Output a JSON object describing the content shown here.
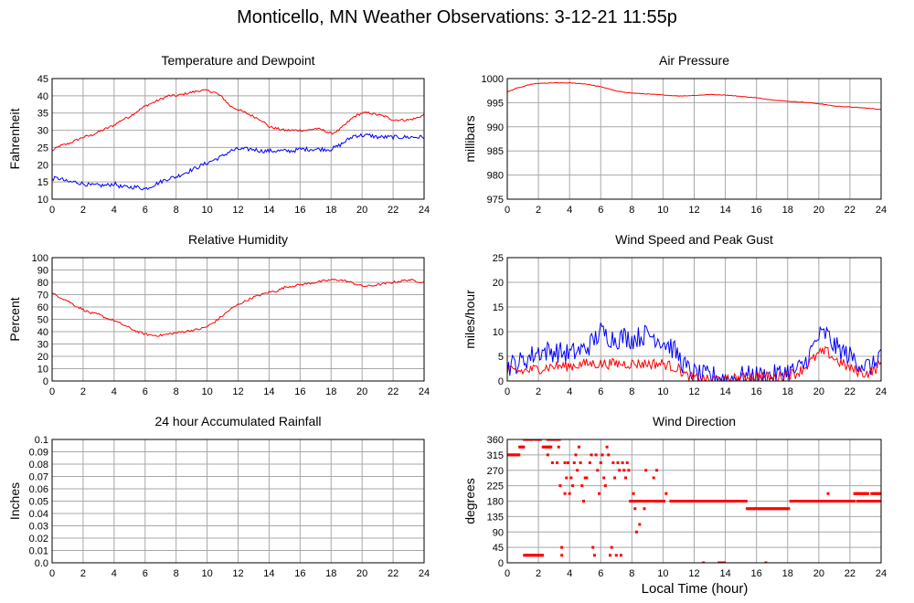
{
  "page": {
    "title": "Monticello, MN Weather Observations: 3-12-21 11:55p",
    "xlabel": "Local Time (hour)"
  },
  "colors": {
    "red": "#ff0000",
    "blue": "#0000ff",
    "grid": "#a8a8a8"
  },
  "chart_data": [
    {
      "id": "temp",
      "type": "line",
      "title": "Temperature and Dewpoint",
      "ylabel": "Fahrenheit",
      "xlim": [
        0,
        24
      ],
      "ylim": [
        10,
        45
      ],
      "yticks": [
        10,
        15,
        20,
        25,
        30,
        35,
        40,
        45
      ],
      "xticks": [
        0,
        2,
        4,
        6,
        8,
        10,
        12,
        14,
        16,
        18,
        20,
        22,
        24
      ],
      "grid": true,
      "series": [
        {
          "color": "red",
          "noise": 0.35,
          "x": [
            0,
            0.5,
            1,
            1.5,
            2,
            2.5,
            3,
            3.5,
            4,
            4.5,
            5,
            5.5,
            6,
            6.5,
            7,
            7.5,
            8,
            8.5,
            9,
            9.5,
            10,
            10.5,
            11,
            11.5,
            12,
            12.5,
            13,
            13.5,
            14,
            14.5,
            15,
            15.5,
            16,
            16.5,
            17,
            17.5,
            18,
            18.5,
            19,
            19.5,
            20,
            20.5,
            21,
            21.5,
            22,
            22.5,
            23,
            23.5,
            24
          ],
          "y": [
            24,
            25.5,
            26,
            27,
            28,
            28.5,
            29.5,
            30.5,
            31.5,
            33,
            34,
            35.5,
            37,
            38,
            39,
            40,
            40,
            40.5,
            41,
            41.5,
            41.5,
            41,
            39.5,
            37,
            36,
            35,
            34,
            33,
            31,
            30.5,
            30,
            30,
            30,
            30,
            30.5,
            30,
            29,
            30,
            32,
            34,
            35,
            35,
            34.5,
            34,
            33,
            33,
            33,
            33.5,
            34.5
          ]
        },
        {
          "color": "blue",
          "noise": 0.6,
          "x": [
            0,
            0.5,
            1,
            1.5,
            2,
            2.5,
            3,
            3.5,
            4,
            4.5,
            5,
            5.5,
            6,
            6.5,
            7,
            7.5,
            8,
            8.5,
            9,
            9.5,
            10,
            10.5,
            11,
            11.5,
            12,
            12.5,
            13,
            13.5,
            14,
            14.5,
            15,
            15.5,
            16,
            16.5,
            17,
            17.5,
            18,
            18.5,
            19,
            19.5,
            20,
            20.5,
            21,
            21.5,
            22,
            22.5,
            23,
            23.5,
            24
          ],
          "y": [
            16,
            16,
            15,
            15,
            14.5,
            14,
            14,
            14,
            14.5,
            13.5,
            13.5,
            13.5,
            13,
            14,
            15,
            16,
            16.5,
            17.5,
            18.5,
            19.5,
            20.5,
            21.5,
            22.5,
            24,
            24.5,
            24.5,
            24.5,
            24,
            24,
            24,
            24,
            24,
            24.5,
            24.5,
            24.5,
            24.5,
            24.5,
            25.5,
            27,
            28.5,
            28.5,
            28.5,
            28,
            28,
            28,
            28,
            28,
            28,
            28
          ]
        }
      ]
    },
    {
      "id": "pressure",
      "type": "line",
      "title": "Air Pressure",
      "ylabel": "millibars",
      "xlim": [
        0,
        24
      ],
      "ylim": [
        975,
        1000
      ],
      "yticks": [
        975,
        980,
        985,
        990,
        995,
        1000
      ],
      "xticks": [
        0,
        2,
        4,
        6,
        8,
        10,
        12,
        14,
        16,
        18,
        20,
        22,
        24
      ],
      "grid": true,
      "series": [
        {
          "color": "red",
          "noise": 0.06,
          "x": [
            0,
            0.5,
            1,
            1.5,
            2,
            3,
            4,
            5,
            6,
            6.5,
            7,
            8,
            9,
            10,
            11,
            12,
            13,
            14,
            15,
            16,
            17,
            18,
            19,
            20,
            21,
            22,
            23,
            24
          ],
          "y": [
            997.2,
            997.9,
            998.3,
            998.8,
            999.0,
            999.1,
            999.1,
            998.9,
            998.3,
            997.9,
            997.4,
            997.0,
            996.8,
            996.6,
            996.4,
            996.5,
            996.7,
            996.6,
            996.3,
            996.0,
            995.6,
            995.3,
            995.1,
            994.8,
            994.3,
            994.1,
            993.9,
            993.6
          ]
        }
      ]
    },
    {
      "id": "humidity",
      "type": "line",
      "title": "Relative Humidity",
      "ylabel": "Percent",
      "xlim": [
        0,
        24
      ],
      "ylim": [
        0,
        100
      ],
      "yticks": [
        0,
        10,
        20,
        30,
        40,
        50,
        60,
        70,
        80,
        90,
        100
      ],
      "xticks": [
        0,
        2,
        4,
        6,
        8,
        10,
        12,
        14,
        16,
        18,
        20,
        22,
        24
      ],
      "grid": true,
      "series": [
        {
          "color": "red",
          "noise": 0.9,
          "x": [
            0,
            0.5,
            1,
            1.5,
            2,
            2.5,
            3,
            3.5,
            4,
            4.5,
            5,
            5.5,
            6,
            6.5,
            7,
            7.5,
            8,
            8.5,
            9,
            9.5,
            10,
            10.5,
            11,
            11.5,
            12,
            12.5,
            13,
            13.5,
            14,
            14.5,
            15,
            15.5,
            16,
            16.5,
            17,
            17.5,
            18,
            18.5,
            19,
            19.5,
            20,
            20.5,
            21,
            21.5,
            22,
            22.5,
            23,
            23.5,
            24
          ],
          "y": [
            71,
            68,
            65,
            61,
            58,
            55,
            54,
            51,
            49,
            46,
            43,
            40,
            38,
            37,
            37,
            38,
            39,
            40,
            41,
            42,
            44,
            48,
            53,
            58,
            62,
            65,
            68,
            70,
            72,
            73,
            76,
            77,
            78,
            79,
            80,
            81,
            82,
            82,
            81,
            79,
            77,
            77,
            78,
            79,
            80,
            81,
            82,
            81,
            80
          ]
        }
      ]
    },
    {
      "id": "wind",
      "type": "line",
      "title": "Wind Speed and Peak Gust",
      "ylabel": "miles/hour",
      "xlim": [
        0,
        24
      ],
      "ylim": [
        0,
        25
      ],
      "yticks": [
        0,
        5,
        10,
        15,
        20,
        25
      ],
      "xticks": [
        0,
        2,
        4,
        6,
        8,
        10,
        12,
        14,
        16,
        18,
        20,
        22,
        24
      ],
      "grid": true,
      "series": [
        {
          "color": "blue",
          "noise": 2.2,
          "x": [
            0,
            1,
            2,
            3,
            4,
            5,
            5.5,
            6,
            6.5,
            7,
            7.5,
            8,
            8.5,
            9,
            9.5,
            10,
            10.5,
            11,
            11.5,
            12,
            12.5,
            13,
            13.5,
            14,
            14.5,
            15,
            15.5,
            16,
            16.5,
            17,
            17.5,
            18,
            18.5,
            19,
            19.5,
            20,
            20.5,
            21,
            21.5,
            22,
            22.5,
            23,
            23.5,
            24
          ],
          "y": [
            3,
            4,
            6,
            6,
            5.5,
            6.5,
            8,
            10,
            9,
            8.5,
            9,
            8.5,
            9,
            9.5,
            9,
            8,
            7,
            5,
            2.5,
            1.5,
            1,
            1,
            1,
            0.5,
            0.5,
            1,
            1,
            1,
            1,
            1,
            1.5,
            2,
            2,
            3,
            6,
            9,
            9.5,
            7,
            6,
            5,
            4,
            3,
            3,
            6
          ]
        },
        {
          "color": "red",
          "noise": 1.1,
          "x": [
            0,
            1,
            2,
            3,
            4,
            5,
            6,
            7,
            8,
            9,
            10,
            10.5,
            11,
            11.5,
            12,
            12.5,
            13,
            13.5,
            14,
            14.5,
            15,
            15.5,
            16,
            16.5,
            17,
            17.5,
            18,
            18.5,
            19,
            19.5,
            20,
            20.5,
            21,
            21.5,
            22,
            22.5,
            23,
            23.5,
            24
          ],
          "y": [
            2,
            2,
            2.5,
            3,
            3,
            3.5,
            3.5,
            3.5,
            3.5,
            3.5,
            3.5,
            3,
            2.5,
            1,
            0.5,
            0.5,
            0,
            0.5,
            0,
            0.5,
            0.5,
            1,
            1,
            1,
            0.5,
            1,
            1.5,
            1.5,
            2.5,
            4,
            5.5,
            6,
            4.5,
            3.5,
            2.5,
            2,
            1.5,
            2,
            3.5
          ]
        }
      ]
    },
    {
      "id": "rain",
      "type": "line",
      "title": "24 hour Accumulated Rainfall",
      "ylabel": "Inches",
      "xlim": [
        0,
        24
      ],
      "ylim": [
        0,
        0.1
      ],
      "yticks": [
        0.0,
        0.01,
        0.02,
        0.03,
        0.04,
        0.05,
        0.06,
        0.07,
        0.08,
        0.09,
        0.1
      ],
      "ytick_labels": [
        "0.0",
        "0.01",
        "0.02",
        "0.03",
        "0.04",
        "0.05",
        "0.06",
        "0.07",
        "0.08",
        "0.09",
        "0.1"
      ],
      "xticks": [
        0,
        2,
        4,
        6,
        8,
        10,
        12,
        14,
        16,
        18,
        20,
        22,
        24
      ],
      "grid": true,
      "series": [
        {
          "color": "red",
          "noise": 0,
          "x": [
            0,
            24
          ],
          "y": [
            0,
            0
          ]
        }
      ]
    },
    {
      "id": "direction",
      "type": "scatter",
      "title": "Wind Direction",
      "ylabel": "degrees",
      "xlim": [
        0,
        24
      ],
      "ylim": [
        0,
        360
      ],
      "yticks": [
        0,
        45,
        90,
        135,
        180,
        225,
        270,
        315,
        360
      ],
      "xticks": [
        0,
        2,
        4,
        6,
        8,
        10,
        12,
        14,
        16,
        18,
        20,
        22,
        24
      ],
      "grid": true,
      "runs": [
        [
          0.0,
          0.8,
          315
        ],
        [
          0.8,
          1.1,
          338
        ],
        [
          1.1,
          1.6,
          360
        ],
        [
          1.8,
          2.2,
          360
        ],
        [
          1.1,
          2.3,
          22
        ],
        [
          2.3,
          2.8,
          338
        ],
        [
          2.6,
          3.4,
          360
        ],
        [
          7.9,
          10.1,
          180
        ],
        [
          10.5,
          13.9,
          180
        ],
        [
          14.0,
          15.4,
          180
        ],
        [
          15.4,
          18.1,
          158
        ],
        [
          18.2,
          22.3,
          180
        ],
        [
          22.4,
          23.2,
          202
        ],
        [
          22.5,
          23.9,
          180
        ],
        [
          23.4,
          24.0,
          202
        ],
        [
          23.8,
          24.0,
          180
        ],
        [
          13.6,
          14.0,
          0
        ]
      ],
      "points": [
        [
          2.6,
          315
        ],
        [
          2.7,
          338
        ],
        [
          2.9,
          292
        ],
        [
          3.2,
          292
        ],
        [
          3.3,
          338
        ],
        [
          3.4,
          225
        ],
        [
          3.5,
          45
        ],
        [
          3.5,
          22
        ],
        [
          3.7,
          292
        ],
        [
          3.7,
          202
        ],
        [
          3.8,
          248
        ],
        [
          3.9,
          292
        ],
        [
          4.0,
          202
        ],
        [
          4.1,
          248
        ],
        [
          4.2,
          225
        ],
        [
          4.3,
          292
        ],
        [
          4.4,
          315
        ],
        [
          4.5,
          270
        ],
        [
          4.6,
          338
        ],
        [
          4.7,
          292
        ],
        [
          4.8,
          225
        ],
        [
          4.9,
          180
        ],
        [
          5.0,
          248
        ],
        [
          5.1,
          248
        ],
        [
          5.3,
          292
        ],
        [
          5.4,
          315
        ],
        [
          5.5,
          45
        ],
        [
          5.6,
          22
        ],
        [
          5.7,
          315
        ],
        [
          5.8,
          270
        ],
        [
          5.9,
          202
        ],
        [
          6.0,
          292
        ],
        [
          6.1,
          315
        ],
        [
          6.2,
          248
        ],
        [
          6.3,
          225
        ],
        [
          6.4,
          338
        ],
        [
          6.5,
          315
        ],
        [
          6.6,
          22
        ],
        [
          6.7,
          45
        ],
        [
          6.8,
          292
        ],
        [
          6.9,
          248
        ],
        [
          7.0,
          22
        ],
        [
          7.1,
          292
        ],
        [
          7.2,
          270
        ],
        [
          7.3,
          22
        ],
        [
          7.4,
          292
        ],
        [
          7.5,
          270
        ],
        [
          7.6,
          248
        ],
        [
          7.7,
          292
        ],
        [
          7.8,
          270
        ],
        [
          8.1,
          202
        ],
        [
          8.2,
          158
        ],
        [
          8.3,
          90
        ],
        [
          8.5,
          112
        ],
        [
          8.6,
          180
        ],
        [
          8.8,
          158
        ],
        [
          8.9,
          270
        ],
        [
          9.2,
          180
        ],
        [
          9.4,
          248
        ],
        [
          9.6,
          270
        ],
        [
          10.2,
          202
        ],
        [
          12.6,
          0
        ],
        [
          16.6,
          0
        ],
        [
          20.6,
          202
        ],
        [
          22.3,
          202
        ]
      ]
    }
  ]
}
